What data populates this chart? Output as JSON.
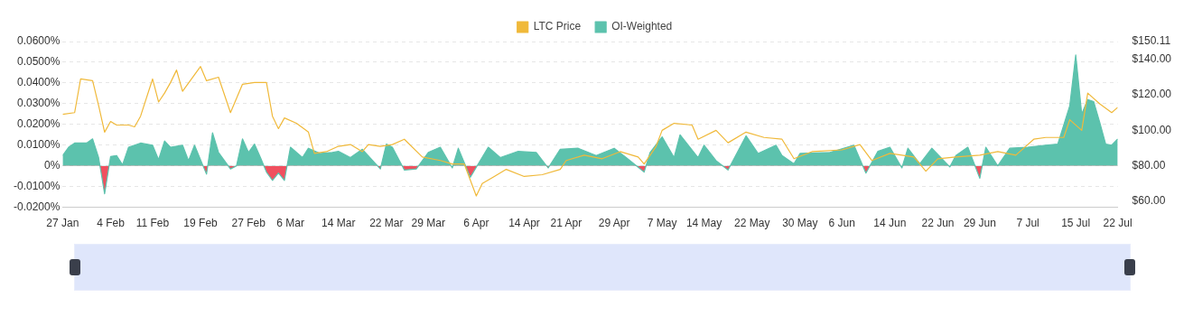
{
  "chart_data": {
    "type": "line",
    "xlim": [
      "--01-27",
      "--07-22"
    ],
    "xticks": [
      {
        "value": "--01-27",
        "label": "27 Jan"
      },
      {
        "value": "--02-04",
        "label": "4 Feb"
      },
      {
        "value": "--02-11",
        "label": "11 Feb"
      },
      {
        "value": "--02-19",
        "label": "19 Feb"
      },
      {
        "value": "--02-27",
        "label": "27 Feb"
      },
      {
        "value": "--03-06",
        "label": "6 Mar"
      },
      {
        "value": "--03-14",
        "label": "14 Mar"
      },
      {
        "value": "--03-22",
        "label": "22 Mar"
      },
      {
        "value": "--03-29",
        "label": "29 Mar"
      },
      {
        "value": "--04-06",
        "label": "6 Apr"
      },
      {
        "value": "--04-14",
        "label": "14 Apr"
      },
      {
        "value": "--04-21",
        "label": "21 Apr"
      },
      {
        "value": "--04-29",
        "label": "29 Apr"
      },
      {
        "value": "--05-07",
        "label": "7 May"
      },
      {
        "value": "--05-14",
        "label": "14 May"
      },
      {
        "value": "--05-22",
        "label": "22 May"
      },
      {
        "value": "--05-30",
        "label": "30 May"
      },
      {
        "value": "--06-06",
        "label": "6 Jun"
      },
      {
        "value": "--06-14",
        "label": "14 Jun"
      },
      {
        "value": "--06-22",
        "label": "22 Jun"
      },
      {
        "value": "--06-29",
        "label": "29 Jun"
      },
      {
        "value": "--07-07",
        "label": "7 Jul"
      },
      {
        "value": "--07-15",
        "label": "15 Jul"
      },
      {
        "value": "--07-22",
        "label": "22 Jul"
      }
    ],
    "ylim": [
      -0.02,
      0.06
    ],
    "yticks": [
      {
        "value": -0.02,
        "label": "-0.0200%"
      },
      {
        "value": -0.01,
        "label": "-0.0100%"
      },
      {
        "value": 0,
        "label": "0%"
      },
      {
        "value": 0.01,
        "label": "0.0100%"
      },
      {
        "value": 0.02,
        "label": "0.0200%"
      },
      {
        "value": 0.03,
        "label": "0.0300%"
      },
      {
        "value": 0.04,
        "label": "0.0400%"
      },
      {
        "value": 0.05,
        "label": "0.0500%"
      },
      {
        "value": 0.06,
        "label": "0.0600%"
      }
    ],
    "y2lim": [
      56.6,
      150.11
    ],
    "y2ticks": [
      {
        "value": 60,
        "label": "$60.00"
      },
      {
        "value": 80,
        "label": "$80.00"
      },
      {
        "value": 100,
        "label": "$100.00"
      },
      {
        "value": 120,
        "label": "$120.00"
      },
      {
        "value": 140,
        "label": "$140.00"
      },
      {
        "value": 150.11,
        "label": "$150.11"
      }
    ],
    "grid": "y",
    "legend": "top",
    "marker": "none",
    "series": [
      {
        "name": "LTC Price",
        "type": "line",
        "axis": "y2",
        "color": "#f0b93a",
        "x": [
          "--01-27",
          "--01-29",
          "--01-30",
          "--02-01",
          "--02-02",
          "--02-03",
          "--02-04",
          "--02-05",
          "--02-07",
          "--02-08",
          "--02-09",
          "--02-11",
          "--02-12",
          "--02-13",
          "--02-14",
          "--02-15",
          "--02-16",
          "--02-19",
          "--02-20",
          "--02-22",
          "--02-24",
          "--02-26",
          "--02-28",
          "--03-02",
          "--03-03",
          "--03-04",
          "--03-05",
          "--03-07",
          "--03-09",
          "--03-10",
          "--03-12",
          "--03-14",
          "--03-16",
          "--03-18",
          "--03-19",
          "--03-21",
          "--03-23",
          "--03-25",
          "--03-28",
          "--03-31",
          "--04-02",
          "--04-04",
          "--04-06",
          "--04-07",
          "--04-09",
          "--04-11",
          "--04-14",
          "--04-17",
          "--04-20",
          "--04-21",
          "--04-24",
          "--04-27",
          "--04-30",
          "--05-03",
          "--05-04",
          "--05-06",
          "--05-07",
          "--05-09",
          "--05-12",
          "--05-13",
          "--05-16",
          "--05-18",
          "--05-21",
          "--05-24",
          "--05-27",
          "--05-29",
          "--06-01",
          "--06-06",
          "--06-09",
          "--06-11",
          "--06-14",
          "--06-18",
          "--06-20",
          "--06-22",
          "--06-25",
          "--06-29",
          "--07-02",
          "--07-05",
          "--07-08",
          "--07-10",
          "--07-13",
          "--07-14",
          "--07-16",
          "--07-17",
          "--07-19",
          "--07-21",
          "--07-22"
        ],
        "values": [
          109,
          110,
          129,
          128,
          114,
          99,
          105,
          103,
          103,
          102,
          108,
          129,
          116,
          121,
          127,
          134,
          122,
          136,
          128,
          130,
          110,
          126,
          127,
          127,
          108,
          101,
          107,
          104,
          99,
          87,
          88,
          91,
          92,
          88,
          92,
          91,
          92,
          95,
          85,
          83,
          81,
          81,
          63,
          70,
          74,
          78,
          74,
          75,
          78,
          83,
          86,
          84,
          88,
          85,
          81,
          91,
          100,
          104,
          103,
          95,
          100,
          93,
          99,
          96,
          95,
          84,
          88,
          89,
          92,
          83,
          87,
          85,
          77,
          84,
          85,
          86,
          88,
          86,
          95,
          96,
          96,
          106,
          100,
          121,
          115,
          110,
          113
        ]
      },
      {
        "name": "OI-Weighted",
        "type": "area",
        "axis": "y",
        "color": "#5cc2ad",
        "x": [
          "--01-27",
          "--01-28",
          "--01-29",
          "--01-30",
          "--01-31",
          "--02-01",
          "--02-02",
          "--02-03",
          "--02-04",
          "--02-05",
          "--02-06",
          "--02-07",
          "--02-09",
          "--02-11",
          "--02-12",
          "--02-13",
          "--02-14",
          "--02-16",
          "--02-17",
          "--02-18",
          "--02-20",
          "--02-21",
          "--02-22",
          "--02-24",
          "--02-25",
          "--02-26",
          "--02-27",
          "--02-28",
          "--03-01",
          "--03-02",
          "--03-03",
          "--03-04",
          "--03-05",
          "--03-06",
          "--03-08",
          "--03-09",
          "--03-11",
          "--03-13",
          "--03-14",
          "--03-16",
          "--03-18",
          "--03-21",
          "--03-22",
          "--03-23",
          "--03-25",
          "--03-27",
          "--03-29",
          "--03-31",
          "--04-02",
          "--04-03",
          "--04-05",
          "--04-08",
          "--04-10",
          "--04-13",
          "--04-16",
          "--04-18",
          "--04-20",
          "--04-23",
          "--04-26",
          "--04-29",
          "--05-01",
          "--05-04",
          "--05-05",
          "--05-07",
          "--05-09",
          "--05-10",
          "--05-13",
          "--05-14",
          "--05-16",
          "--05-18",
          "--05-21",
          "--05-23",
          "--05-26",
          "--05-27",
          "--05-29",
          "--05-30",
          "--06-04",
          "--06-08",
          "--06-10",
          "--06-12",
          "--06-14",
          "--06-16",
          "--06-17",
          "--06-19",
          "--06-21",
          "--06-24",
          "--06-25",
          "--06-27",
          "--06-29",
          "--06-30",
          "--07-02",
          "--07-04",
          "--07-07",
          "--07-10",
          "--07-12",
          "--07-14",
          "--07-15",
          "--07-16",
          "--07-17",
          "--07-18",
          "--07-19",
          "--07-20",
          "--07-21",
          "--07-22"
        ],
        "values": [
          0.005,
          0.009,
          0.011,
          0.011,
          0.011,
          0.013,
          0.004,
          -0.0135,
          0.0045,
          0.005,
          0.0005,
          0.009,
          0.011,
          0.01,
          0.003,
          0.012,
          0.009,
          0.01,
          0.0025,
          0.01,
          -0.004,
          0.016,
          0.0065,
          -0.0015,
          0,
          0.013,
          0.0065,
          0.0105,
          0.004,
          -0.003,
          -0.007,
          -0.0035,
          -0.007,
          0.009,
          0.004,
          0.0085,
          0.006,
          0.0065,
          0.007,
          0.004,
          0.008,
          -0.0015,
          0.0105,
          0.009,
          -0.002,
          -0.0015,
          0.0065,
          0.009,
          -0.001,
          0.0085,
          -0.0055,
          0.009,
          0.004,
          0.007,
          0.0065,
          -0.001,
          0.008,
          0.0085,
          0.005,
          0.0085,
          0.004,
          -0.003,
          0.0065,
          0.014,
          0.004,
          0.015,
          0.004,
          0.01,
          0.0025,
          -0.002,
          0.0145,
          0.006,
          0.01,
          0.005,
          0.001,
          0.006,
          0.0065,
          0.01,
          -0.0035,
          0.007,
          0.009,
          -0.001,
          0.0085,
          0.001,
          0.0085,
          -0.0005,
          0.005,
          0.009,
          -0.006,
          0.009,
          0,
          0.0085,
          0.009,
          0.01,
          0.0105,
          0.029,
          0.0535,
          0.025,
          0.032,
          0.031,
          0.021,
          0.0105,
          0.01,
          0.013
        ],
        "colors": [
          "#5cc2ad",
          "#5cc2ad",
          "#5cc2ad",
          "#5cc2ad",
          "#5cc2ad",
          "#5cc2ad",
          "#5cc2ad",
          "#f0505f",
          "#5cc2ad",
          "#5cc2ad",
          "#5cc2ad",
          "#5cc2ad",
          "#5cc2ad",
          "#5cc2ad",
          "#5cc2ad",
          "#5cc2ad",
          "#5cc2ad",
          "#5cc2ad",
          "#5cc2ad",
          "#5cc2ad",
          "#f0505f",
          "#5cc2ad",
          "#5cc2ad",
          "#f0505f",
          "#5cc2ad",
          "#5cc2ad",
          "#5cc2ad",
          "#5cc2ad",
          "#5cc2ad",
          "#f0505f",
          "#f0505f",
          "#f0505f",
          "#f0505f",
          "#5cc2ad",
          "#5cc2ad",
          "#5cc2ad",
          "#5cc2ad",
          "#5cc2ad",
          "#5cc2ad",
          "#5cc2ad",
          "#5cc2ad",
          "#f0505f",
          "#5cc2ad",
          "#5cc2ad",
          "#f0505f",
          "#f0505f",
          "#5cc2ad",
          "#5cc2ad",
          "#f0505f",
          "#5cc2ad",
          "#f0505f",
          "#5cc2ad",
          "#5cc2ad",
          "#5cc2ad",
          "#5cc2ad",
          "#f0505f",
          "#5cc2ad",
          "#5cc2ad",
          "#5cc2ad",
          "#5cc2ad",
          "#5cc2ad",
          "#f0505f",
          "#5cc2ad",
          "#5cc2ad",
          "#5cc2ad",
          "#5cc2ad",
          "#5cc2ad",
          "#5cc2ad",
          "#5cc2ad",
          "#f0505f",
          "#5cc2ad",
          "#5cc2ad",
          "#5cc2ad",
          "#5cc2ad",
          "#5cc2ad",
          "#5cc2ad",
          "#5cc2ad",
          "#5cc2ad",
          "#f0505f",
          "#5cc2ad",
          "#5cc2ad",
          "#f0505f",
          "#5cc2ad",
          "#5cc2ad",
          "#5cc2ad",
          "#f0505f",
          "#5cc2ad",
          "#5cc2ad",
          "#f0505f",
          "#5cc2ad",
          "#5cc2ad",
          "#5cc2ad",
          "#5cc2ad",
          "#5cc2ad",
          "#5cc2ad",
          "#5cc2ad",
          "#5cc2ad",
          "#5cc2ad",
          "#5cc2ad",
          "#5cc2ad",
          "#5cc2ad",
          "#5cc2ad",
          "#5cc2ad",
          "#5cc2ad"
        ]
      }
    ]
  }
}
